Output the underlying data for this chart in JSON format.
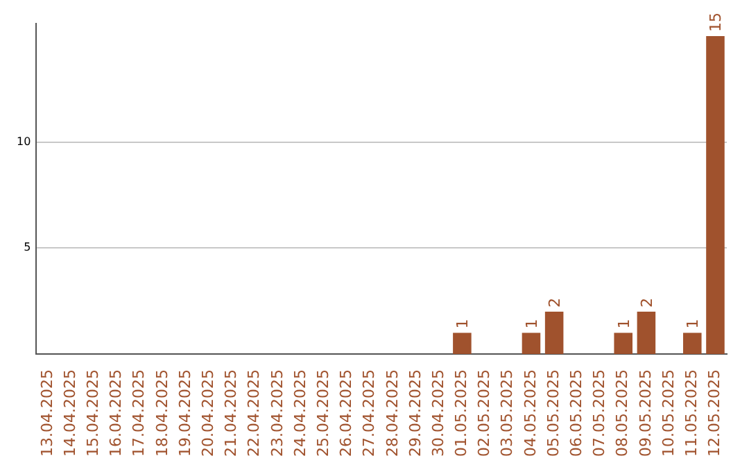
{
  "chart_data": {
    "type": "bar",
    "categories": [
      "13.04.2025",
      "14.04.2025",
      "15.04.2025",
      "16.04.2025",
      "17.04.2025",
      "18.04.2025",
      "19.04.2025",
      "20.04.2025",
      "21.04.2025",
      "22.04.2025",
      "23.04.2025",
      "24.04.2025",
      "25.04.2025",
      "26.04.2025",
      "27.04.2025",
      "28.04.2025",
      "29.04.2025",
      "30.04.2025",
      "01.05.2025",
      "02.05.2025",
      "03.05.2025",
      "04.05.2025",
      "05.05.2025",
      "06.05.2025",
      "07.05.2025",
      "08.05.2025",
      "09.05.2025",
      "10.05.2025",
      "11.05.2025",
      "12.05.2025"
    ],
    "values": [
      0,
      0,
      0,
      0,
      0,
      0,
      0,
      0,
      0,
      0,
      0,
      0,
      0,
      0,
      0,
      0,
      0,
      0,
      1,
      0,
      0,
      1,
      2,
      0,
      0,
      1,
      2,
      0,
      1,
      15
    ],
    "value_labels": [
      null,
      null,
      null,
      null,
      null,
      null,
      null,
      null,
      null,
      null,
      null,
      null,
      null,
      null,
      null,
      null,
      null,
      null,
      "1",
      null,
      null,
      "1",
      "2",
      null,
      null,
      "1",
      "2",
      null,
      "1",
      "15"
    ],
    "color": "#a0522d",
    "ylim": [
      0,
      15.6
    ],
    "yticks": [
      5,
      10
    ],
    "grid": "y",
    "legend": false
  }
}
